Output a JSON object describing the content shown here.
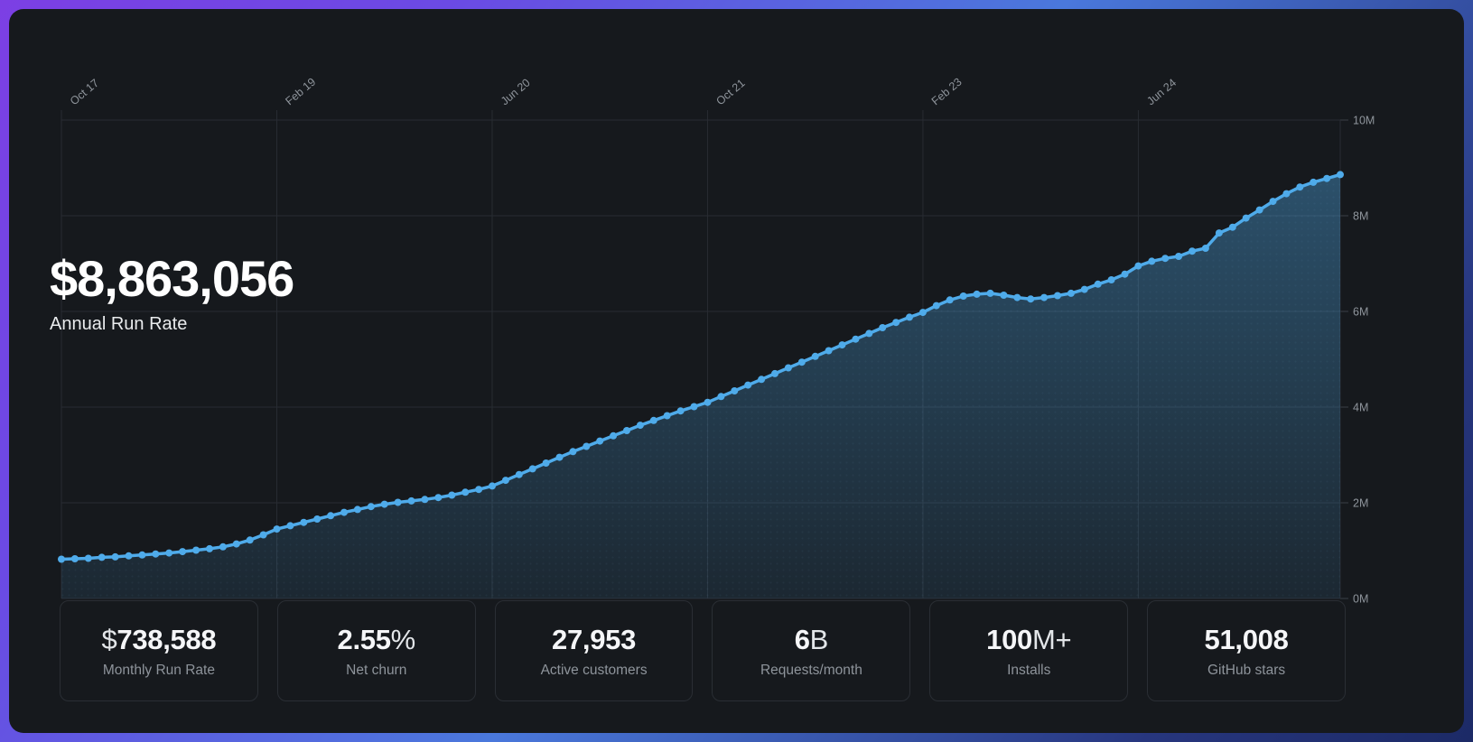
{
  "colors": {
    "frame_gradient_start": "#7c3fe4",
    "frame_gradient_mid": "#4a78dc",
    "frame_gradient_end": "#1c2a66",
    "card_background": "#16191d",
    "gridline": "#282c32",
    "axis_text": "#8f959c",
    "line": "#4fabea",
    "area_fill_top": "rgba(79,171,234,0.38)",
    "area_fill_bottom": "rgba(79,171,234,0.10)",
    "headline_text": "#ffffff",
    "stat_label_text": "#8e949b"
  },
  "headline": {
    "value": "$8,863,056",
    "label": "Annual Run Rate"
  },
  "chart_data": {
    "type": "area",
    "title": "Annual Run Rate",
    "unit": "USD millions",
    "x_interval": "monthly",
    "x_labels": [
      "Oct 17",
      "Feb 19",
      "Jun 20",
      "Oct 21",
      "Feb 23",
      "Jun 24"
    ],
    "x_label_every_n_points": 16,
    "y_tick_values": [
      0,
      2,
      4,
      6,
      8,
      10
    ],
    "y_tick_labels": [
      "0M",
      "2M",
      "4M",
      "6M",
      "8M",
      "10M"
    ],
    "ylim": [
      0,
      10
    ],
    "grid": true,
    "legend": false,
    "y_axis_position": "right",
    "x_axis_position": "top",
    "values": [
      0.82,
      0.83,
      0.84,
      0.86,
      0.87,
      0.89,
      0.91,
      0.93,
      0.95,
      0.98,
      1.01,
      1.04,
      1.08,
      1.14,
      1.22,
      1.33,
      1.45,
      1.52,
      1.59,
      1.66,
      1.73,
      1.8,
      1.86,
      1.92,
      1.97,
      2.01,
      2.04,
      2.07,
      2.11,
      2.16,
      2.22,
      2.28,
      2.35,
      2.47,
      2.59,
      2.71,
      2.83,
      2.95,
      3.07,
      3.18,
      3.29,
      3.4,
      3.51,
      3.62,
      3.72,
      3.82,
      3.92,
      4.01,
      4.1,
      4.22,
      4.34,
      4.46,
      4.58,
      4.7,
      4.82,
      4.94,
      5.06,
      5.18,
      5.3,
      5.42,
      5.54,
      5.66,
      5.77,
      5.88,
      5.98,
      6.12,
      6.24,
      6.32,
      6.36,
      6.38,
      6.34,
      6.29,
      6.26,
      6.29,
      6.33,
      6.38,
      6.46,
      6.57,
      6.66,
      6.78,
      6.95,
      7.05,
      7.11,
      7.15,
      7.26,
      7.32,
      7.64,
      7.76,
      7.95,
      8.12,
      8.3,
      8.46,
      8.6,
      8.7,
      8.78,
      8.86
    ]
  },
  "stats": [
    {
      "prefix": "$",
      "value": "738,588",
      "suffix": "",
      "label": "Monthly Run Rate"
    },
    {
      "prefix": "",
      "value": "2.55",
      "suffix": "%",
      "label": "Net churn"
    },
    {
      "prefix": "",
      "value": "27,953",
      "suffix": "",
      "label": "Active customers"
    },
    {
      "prefix": "",
      "value": "6",
      "suffix": "B",
      "label": "Requests/month"
    },
    {
      "prefix": "",
      "value": "100",
      "suffix": "M+",
      "label": "Installs"
    },
    {
      "prefix": "",
      "value": "51,008",
      "suffix": "",
      "label": "GitHub stars"
    }
  ]
}
